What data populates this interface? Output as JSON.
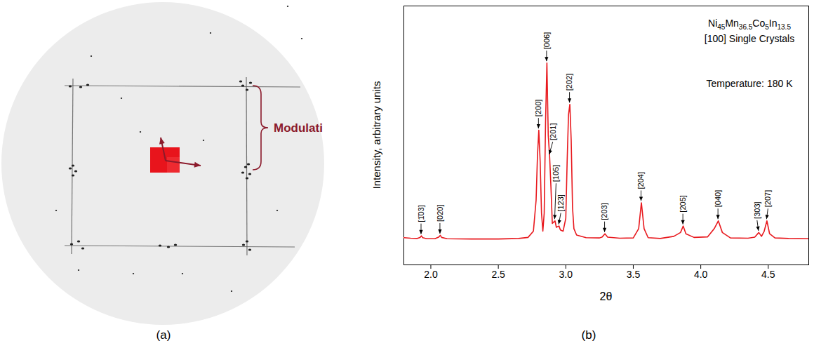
{
  "panels": [
    {
      "label": "(a)",
      "annotation": "Modulati"
    },
    {
      "label": "(b)"
    }
  ],
  "chart_data": {
    "type": "line",
    "x_label": "2θ",
    "y_label": "Intensity, arbitrary units",
    "annotations": [
      "Ni45Mn36.5Co5In13.5",
      "[100] Single Crystals",
      "Temperature: 180 K"
    ],
    "color": "#e8191e",
    "x": [
      1.8,
      1.85,
      1.9,
      1.92,
      1.93,
      1.94,
      1.97,
      2.03,
      2.06,
      2.07,
      2.08,
      2.12,
      2.3,
      2.5,
      2.65,
      2.72,
      2.76,
      2.78,
      2.79,
      2.8,
      2.81,
      2.82,
      2.83,
      2.84,
      2.85,
      2.86,
      2.87,
      2.88,
      2.89,
      2.9,
      2.91,
      2.92,
      2.93,
      2.94,
      2.95,
      2.96,
      2.98,
      3.0,
      3.01,
      3.02,
      3.03,
      3.04,
      3.05,
      3.06,
      3.08,
      3.15,
      3.25,
      3.27,
      3.29,
      3.31,
      3.4,
      3.5,
      3.54,
      3.56,
      3.58,
      3.61,
      3.7,
      3.8,
      3.85,
      3.87,
      3.89,
      3.95,
      4.05,
      4.1,
      4.13,
      4.16,
      4.22,
      4.35,
      4.4,
      4.43,
      4.45,
      4.47,
      4.49,
      4.51,
      4.55,
      4.65,
      4.8
    ],
    "values": [
      0.105,
      0.103,
      0.102,
      0.106,
      0.112,
      0.105,
      0.101,
      0.101,
      0.108,
      0.114,
      0.106,
      0.101,
      0.1,
      0.1,
      0.102,
      0.106,
      0.13,
      0.25,
      0.42,
      0.52,
      0.4,
      0.2,
      0.13,
      0.2,
      0.55,
      0.78,
      0.5,
      0.42,
      0.3,
      0.16,
      0.165,
      0.17,
      0.145,
      0.148,
      0.15,
      0.135,
      0.13,
      0.18,
      0.4,
      0.58,
      0.62,
      0.48,
      0.22,
      0.14,
      0.115,
      0.105,
      0.104,
      0.108,
      0.12,
      0.107,
      0.103,
      0.104,
      0.14,
      0.24,
      0.14,
      0.105,
      0.102,
      0.11,
      0.125,
      0.15,
      0.12,
      0.106,
      0.108,
      0.14,
      0.17,
      0.125,
      0.104,
      0.103,
      0.107,
      0.125,
      0.11,
      0.13,
      0.17,
      0.12,
      0.104,
      0.102,
      0.101
    ],
    "xlim": [
      1.8,
      4.8
    ],
    "xticks": [
      {
        "value": 2,
        "label": "2.0"
      },
      2.5,
      {
        "value": 3,
        "label": "3.0"
      },
      3.5,
      {
        "value": 4,
        "label": "4.0"
      },
      4.5
    ],
    "ylim": [
      0,
      1
    ],
    "yticks": [],
    "tick_labels": "x",
    "grid": false,
    "peaks": [
      {
        "label": "[1̄03]",
        "x": 1.93,
        "y": 0.112
      },
      {
        "label": "[020]",
        "x": 2.07,
        "y": 0.114
      },
      {
        "label": "[200]",
        "x": 2.8,
        "y": 0.52
      },
      {
        "label": "[006]",
        "x": 2.86,
        "y": 0.78
      },
      {
        "label": "[201]",
        "x": 2.88,
        "y": 0.42
      },
      {
        "label": "[105]",
        "x": 2.92,
        "y": 0.17
      },
      {
        "label": "[123]",
        "x": 2.95,
        "y": 0.15
      },
      {
        "label": "[202]",
        "x": 3.03,
        "y": 0.62
      },
      {
        "label": "[203]",
        "x": 3.29,
        "y": 0.12
      },
      {
        "label": "[204]",
        "x": 3.56,
        "y": 0.24
      },
      {
        "label": "[205]",
        "x": 3.87,
        "y": 0.15
      },
      {
        "label": "[040]",
        "x": 4.13,
        "y": 0.17
      },
      {
        "label": "[303]",
        "x": 4.43,
        "y": 0.125
      },
      {
        "label": "[207]",
        "x": 4.49,
        "y": 0.17
      }
    ]
  }
}
